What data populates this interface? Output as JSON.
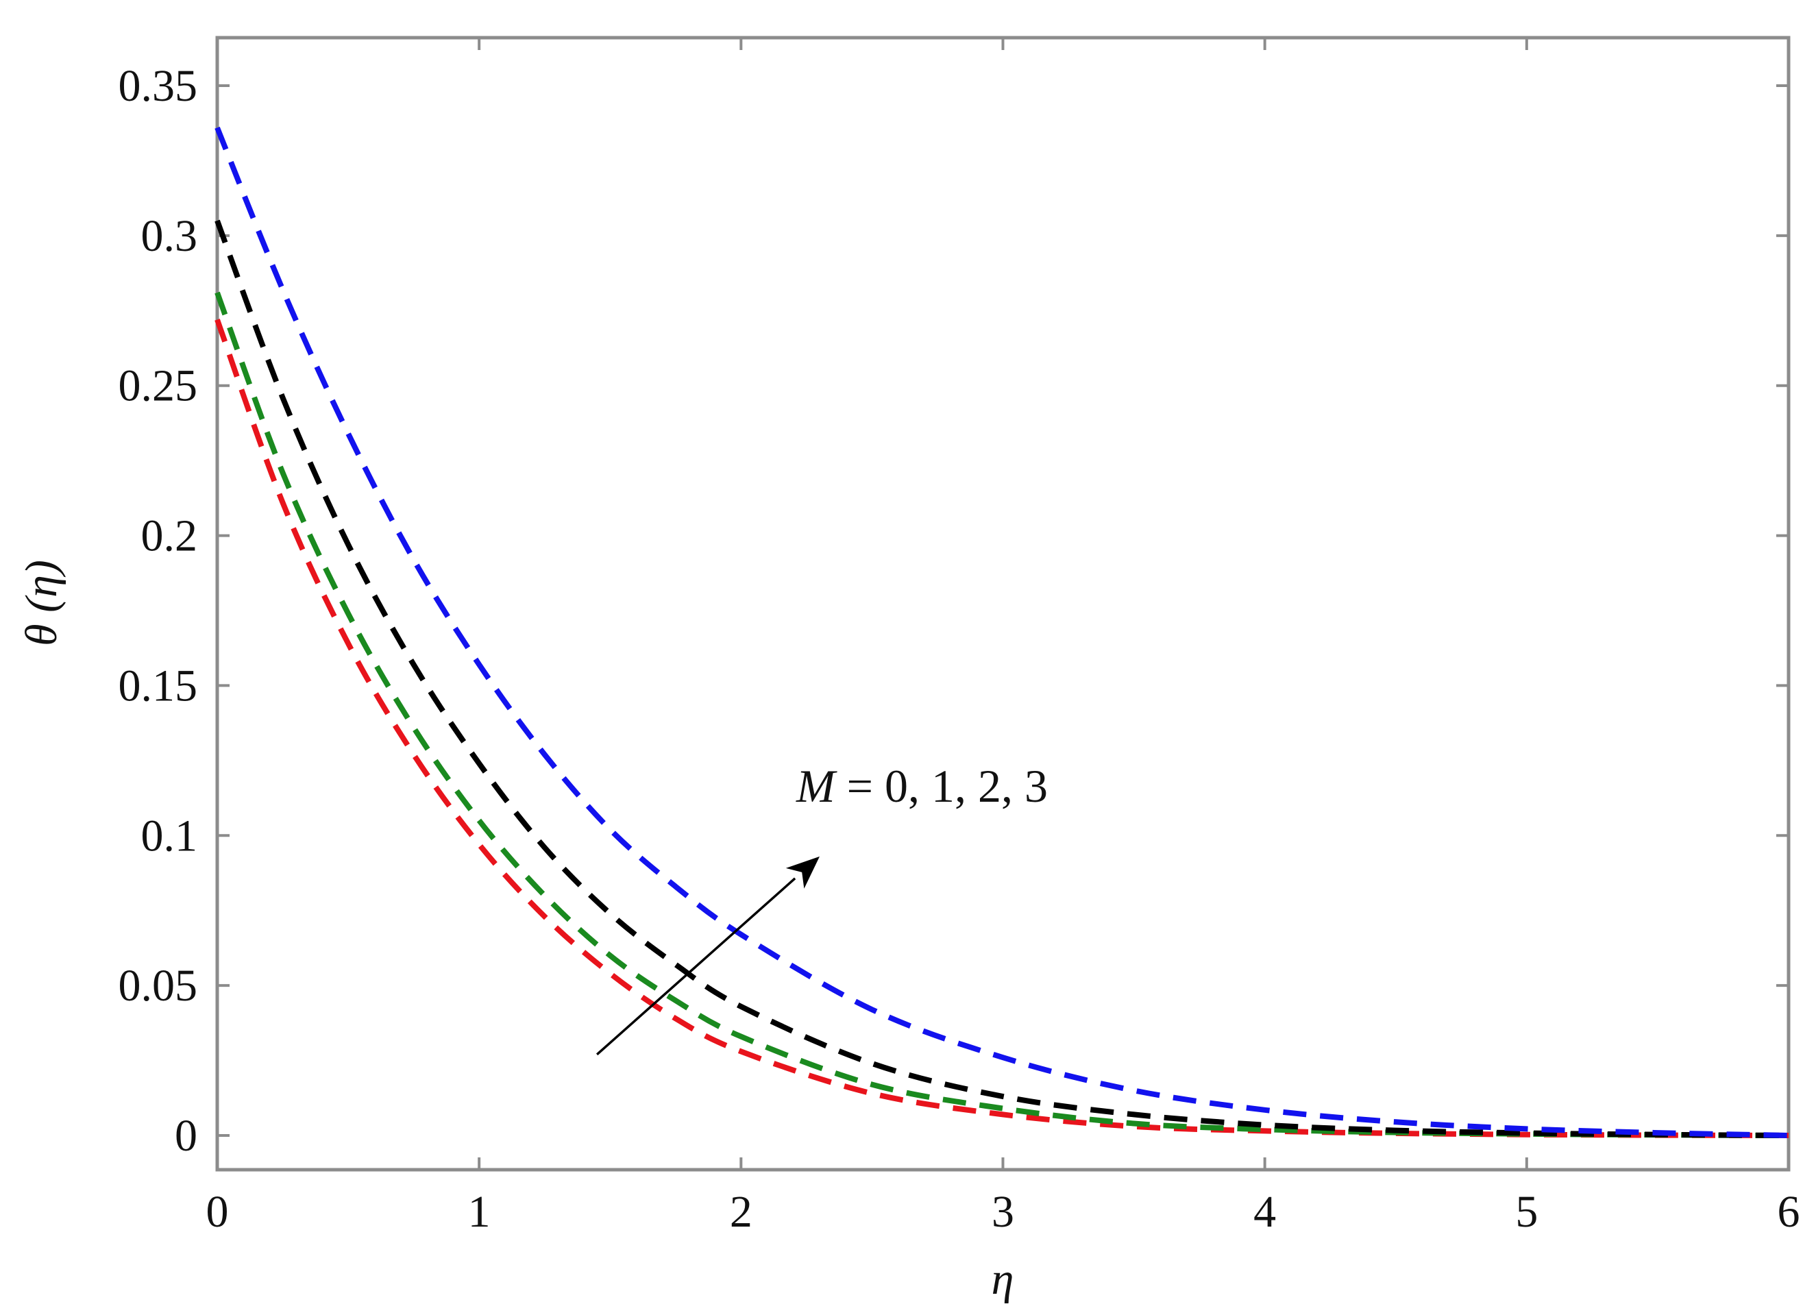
{
  "chart_data": {
    "type": "line",
    "xlabel": "η",
    "ylabel": "θ (η)",
    "xlim": [
      0,
      6
    ],
    "ylim": [
      -0.01,
      0.35
    ],
    "x_ticks": [
      "0",
      "1",
      "2",
      "3",
      "4",
      "5",
      "6"
    ],
    "y_ticks": [
      "0",
      "0.05",
      "0.1",
      "0.15",
      "0.2",
      "0.25",
      "0.3",
      "0.35"
    ],
    "grid": false,
    "line_style": "dashed",
    "annotation": {
      "prefix": "M",
      "text": " = 0, 1, 2, 3"
    },
    "arrow": {
      "from": [
        1.45,
        0.027
      ],
      "to": [
        2.3,
        0.093
      ]
    },
    "x": [
      0,
      0.25,
      0.5,
      0.75,
      1,
      1.25,
      1.5,
      1.75,
      2,
      2.5,
      3,
      3.5,
      4,
      4.5,
      5,
      5.5,
      6
    ],
    "series": [
      {
        "color": "#e8141c",
        "values": [
          0.272,
          0.211,
          0.164,
          0.127,
          0.097,
          0.073,
          0.054,
          0.039,
          0.028,
          0.014,
          0.007,
          0.003,
          0.0015,
          0.0007,
          0.0003,
          0.0001,
          0.0
        ]
      },
      {
        "color": "#1a8a1f",
        "values": [
          0.281,
          0.221,
          0.174,
          0.136,
          0.105,
          0.08,
          0.06,
          0.045,
          0.033,
          0.017,
          0.009,
          0.004,
          0.002,
          0.001,
          0.0005,
          0.0002,
          0.0
        ]
      },
      {
        "color": "#000000",
        "values": [
          0.305,
          0.246,
          0.197,
          0.157,
          0.124,
          0.096,
          0.074,
          0.057,
          0.043,
          0.024,
          0.013,
          0.007,
          0.0035,
          0.0017,
          0.0008,
          0.0003,
          0.0
        ]
      },
      {
        "color": "#1212ee",
        "values": [
          0.336,
          0.282,
          0.234,
          0.192,
          0.157,
          0.127,
          0.102,
          0.083,
          0.067,
          0.042,
          0.026,
          0.015,
          0.0085,
          0.0045,
          0.0022,
          0.0009,
          0.0
        ]
      }
    ]
  }
}
